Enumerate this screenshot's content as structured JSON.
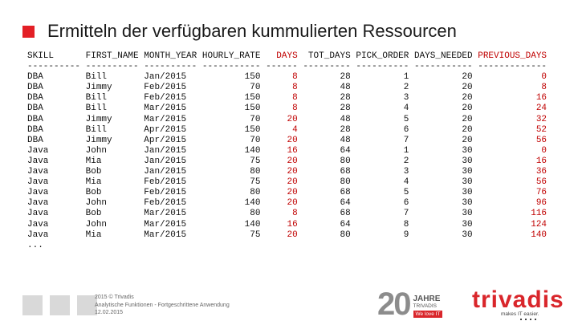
{
  "slide": {
    "title": "Ermitteln der verfügbaren kummulierten Ressourcen"
  },
  "table": {
    "columns": [
      {
        "label": "SKILL",
        "dashes": "----------",
        "width": 10,
        "align": "left",
        "red": false
      },
      {
        "label": "FIRST_NAME",
        "dashes": "----------",
        "width": 10,
        "align": "left",
        "red": false
      },
      {
        "label": "MONTH_YEAR",
        "dashes": "----------",
        "width": 10,
        "align": "left",
        "red": false
      },
      {
        "label": "HOURLY_RATE",
        "dashes": "-----------",
        "width": 11,
        "align": "right",
        "red": false
      },
      {
        "label": "DAYS",
        "dashes": "------",
        "width": 6,
        "align": "right",
        "red": true
      },
      {
        "label": "TOT_DAYS",
        "dashes": "---------",
        "width": 9,
        "align": "right",
        "red": false
      },
      {
        "label": "PICK_ORDER",
        "dashes": "----------",
        "width": 10,
        "align": "right",
        "red": false
      },
      {
        "label": "DAYS_NEEDED",
        "dashes": "-----------",
        "width": 11,
        "align": "right",
        "red": false
      },
      {
        "label": "PREVIOUS_DAYS",
        "dashes": "-------------",
        "width": 13,
        "align": "right",
        "red": true
      }
    ],
    "rows": [
      [
        "DBA",
        "Bill",
        "Jan/2015",
        "150",
        "8",
        "28",
        "1",
        "20",
        "0"
      ],
      [
        "DBA",
        "Jimmy",
        "Feb/2015",
        "70",
        "8",
        "48",
        "2",
        "20",
        "8"
      ],
      [
        "DBA",
        "Bill",
        "Feb/2015",
        "150",
        "8",
        "28",
        "3",
        "20",
        "16"
      ],
      [
        "DBA",
        "Bill",
        "Mar/2015",
        "150",
        "8",
        "28",
        "4",
        "20",
        "24"
      ],
      [
        "DBA",
        "Jimmy",
        "Mar/2015",
        "70",
        "20",
        "48",
        "5",
        "20",
        "32"
      ],
      [
        "DBA",
        "Bill",
        "Apr/2015",
        "150",
        "4",
        "28",
        "6",
        "20",
        "52"
      ],
      [
        "DBA",
        "Jimmy",
        "Apr/2015",
        "70",
        "20",
        "48",
        "7",
        "20",
        "56"
      ],
      [
        "Java",
        "John",
        "Jan/2015",
        "140",
        "16",
        "64",
        "1",
        "30",
        "0"
      ],
      [
        "Java",
        "Mia",
        "Jan/2015",
        "75",
        "20",
        "80",
        "2",
        "30",
        "16"
      ],
      [
        "Java",
        "Bob",
        "Jan/2015",
        "80",
        "20",
        "68",
        "3",
        "30",
        "36"
      ],
      [
        "Java",
        "Mia",
        "Feb/2015",
        "75",
        "20",
        "80",
        "4",
        "30",
        "56"
      ],
      [
        "Java",
        "Bob",
        "Feb/2015",
        "80",
        "20",
        "68",
        "5",
        "30",
        "76"
      ],
      [
        "Java",
        "John",
        "Feb/2015",
        "140",
        "20",
        "64",
        "6",
        "30",
        "96"
      ],
      [
        "Java",
        "Bob",
        "Mar/2015",
        "80",
        "8",
        "68",
        "7",
        "30",
        "116"
      ],
      [
        "Java",
        "John",
        "Mar/2015",
        "140",
        "16",
        "64",
        "8",
        "30",
        "124"
      ],
      [
        "Java",
        "Mia",
        "Mar/2015",
        "75",
        "20",
        "80",
        "9",
        "30",
        "140"
      ]
    ],
    "ellipsis": "..."
  },
  "footer": {
    "copyright": "2015 © Trivadis",
    "subtitle": "Analytische Funktionen - Fortgeschrittene Anwendung",
    "date": "12.02.2015"
  },
  "badge": {
    "number": "20",
    "word": "JAHRE",
    "brand": "TRIVADIS",
    "tagline": "We love IT"
  },
  "logo": {
    "word": "trivadis",
    "tagline": "makes IT easier."
  },
  "colors": {
    "accent": "#e31f26",
    "highlight_text": "#c00000",
    "footer_box": "#d9d9d9"
  }
}
